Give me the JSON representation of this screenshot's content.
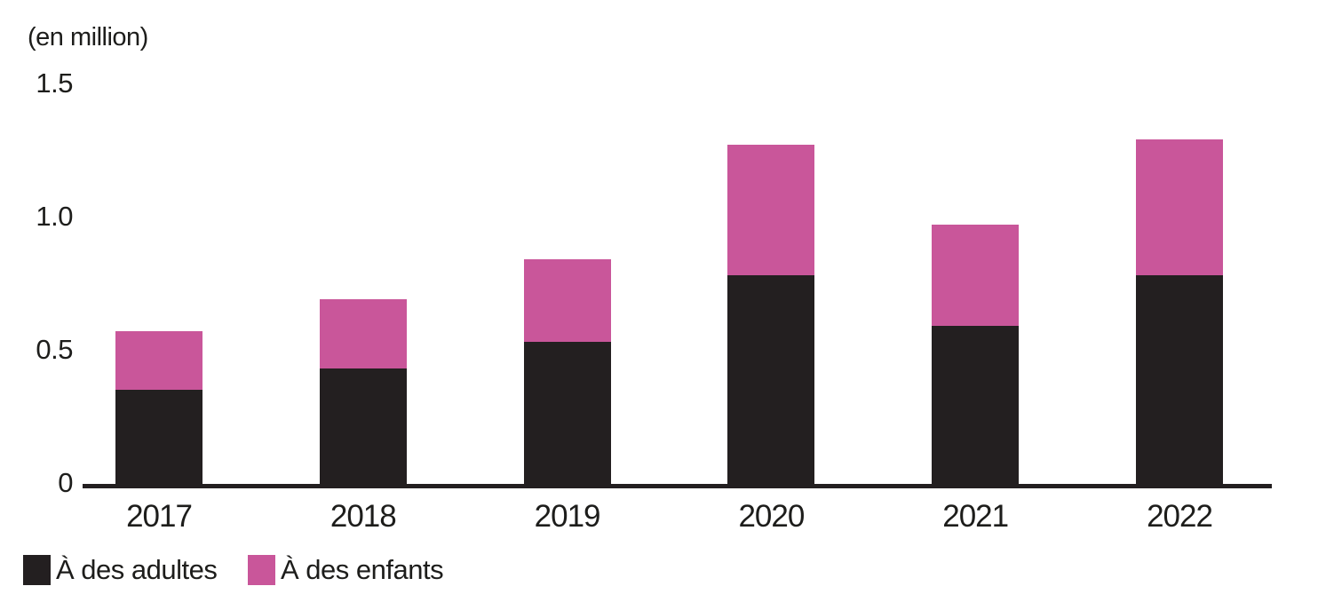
{
  "chart_data": {
    "type": "bar",
    "stacked": true,
    "title": "(en million)",
    "categories": [
      "2017",
      "2018",
      "2019",
      "2020",
      "2021",
      "2022"
    ],
    "series": [
      {
        "name": "À des adultes",
        "color": "#231f20",
        "values": [
          0.36,
          0.44,
          0.54,
          0.79,
          0.6,
          0.79
        ]
      },
      {
        "name": "À des enfants",
        "color": "#c9569a",
        "values": [
          0.22,
          0.26,
          0.31,
          0.49,
          0.38,
          0.51
        ]
      }
    ],
    "ylim": [
      0,
      1.5
    ],
    "yticks": [
      {
        "value": 0,
        "label": "0"
      },
      {
        "value": 0.5,
        "label": "0.5"
      },
      {
        "value": 1.0,
        "label": "1.0"
      },
      {
        "value": 1.5,
        "label": "1.5"
      }
    ],
    "grid": false,
    "legend_position": "bottom-left"
  },
  "colors": {
    "text": "#1d1d1b",
    "axis": "#231f20",
    "background": "#ffffff"
  }
}
